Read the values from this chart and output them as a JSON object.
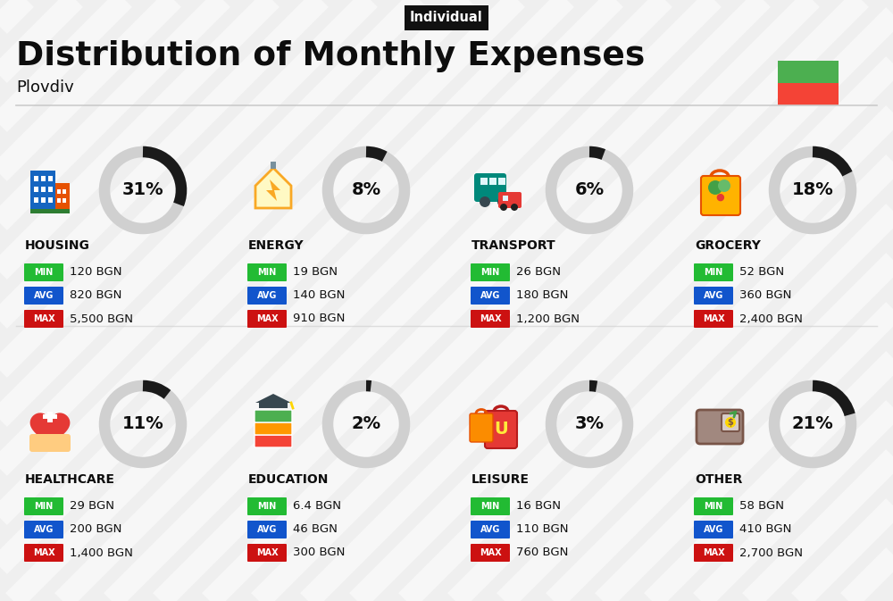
{
  "title": "Distribution of Monthly Expenses",
  "subtitle": "Plovdiv",
  "tag": "Individual",
  "background_color": "#efefef",
  "title_color": "#0d0d0d",
  "subtitle_color": "#0d0d0d",
  "tag_bg": "#111111",
  "tag_text": "#ffffff",
  "flag_green": "#4caf50",
  "flag_red": "#f44336",
  "min_color": "#22bb33",
  "avg_color": "#1155cc",
  "max_color": "#cc1111",
  "label_text_color": "#ffffff",
  "value_text_color": "#111111",
  "circle_bg_color": "#d0d0d0",
  "circle_fg_color": "#1a1a1a",
  "stripe_color": "#ffffff",
  "divider_color": "#cccccc",
  "categories": [
    {
      "name": "HOUSING",
      "pct": 31,
      "min": "120 BGN",
      "avg": "820 BGN",
      "max": "5,500 BGN",
      "row": 0,
      "col": 0
    },
    {
      "name": "ENERGY",
      "pct": 8,
      "min": "19 BGN",
      "avg": "140 BGN",
      "max": "910 BGN",
      "row": 0,
      "col": 1
    },
    {
      "name": "TRANSPORT",
      "pct": 6,
      "min": "26 BGN",
      "avg": "180 BGN",
      "max": "1,200 BGN",
      "row": 0,
      "col": 2
    },
    {
      "name": "GROCERY",
      "pct": 18,
      "min": "52 BGN",
      "avg": "360 BGN",
      "max": "2,400 BGN",
      "row": 0,
      "col": 3
    },
    {
      "name": "HEALTHCARE",
      "pct": 11,
      "min": "29 BGN",
      "avg": "200 BGN",
      "max": "1,400 BGN",
      "row": 1,
      "col": 0
    },
    {
      "name": "EDUCATION",
      "pct": 2,
      "min": "6.4 BGN",
      "avg": "46 BGN",
      "max": "300 BGN",
      "row": 1,
      "col": 1
    },
    {
      "name": "LEISURE",
      "pct": 3,
      "min": "16 BGN",
      "avg": "110 BGN",
      "max": "760 BGN",
      "row": 1,
      "col": 2
    },
    {
      "name": "OTHER",
      "pct": 21,
      "min": "58 BGN",
      "avg": "410 BGN",
      "max": "2,700 BGN",
      "row": 1,
      "col": 3
    }
  ]
}
